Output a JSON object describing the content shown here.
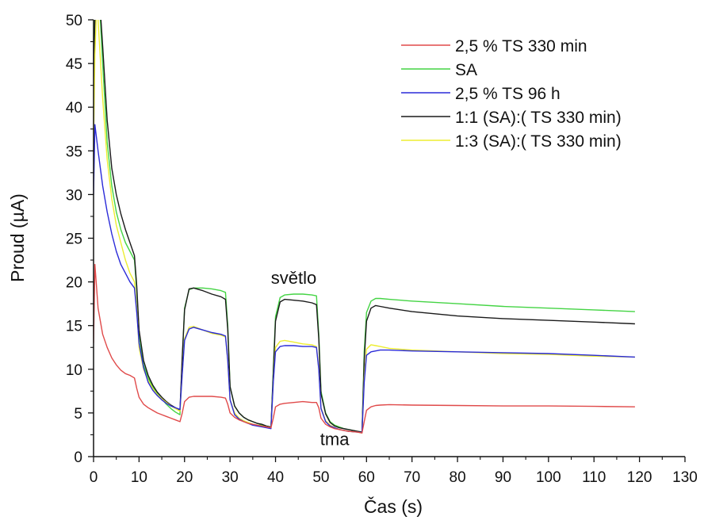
{
  "chart_data": {
    "type": "line",
    "title": "",
    "xlabel": "Čas (s)",
    "ylabel": "Proud (µA)",
    "xlim": [
      0,
      130
    ],
    "ylim": [
      0,
      50
    ],
    "xticks": [
      0,
      10,
      20,
      30,
      40,
      50,
      60,
      70,
      80,
      90,
      100,
      110,
      120,
      130
    ],
    "yticks": [
      0,
      5,
      10,
      15,
      20,
      25,
      30,
      35,
      40,
      45,
      50
    ],
    "grid": false,
    "legend_position": "top-right",
    "annotations": [
      {
        "text": "světlo",
        "x": 44,
        "y": 19.8
      },
      {
        "text": "tma",
        "x": 53,
        "y": 1.3
      }
    ],
    "series": [
      {
        "name": "2,5 % TS 330 min",
        "color": "#e04a4a",
        "x": [
          0,
          0.3,
          1,
          2,
          3,
          4,
          5,
          6,
          7,
          8,
          9,
          9.5,
          10,
          11,
          12,
          13,
          14,
          15,
          16,
          17,
          18,
          19,
          19.5,
          20,
          21,
          22,
          24,
          26,
          28,
          29,
          29.5,
          30,
          31,
          32,
          33,
          34,
          35,
          36,
          37,
          38,
          39,
          39.5,
          40,
          41,
          42,
          44,
          46,
          48,
          49,
          49.5,
          50,
          51,
          52,
          53,
          54,
          55,
          56,
          57,
          58,
          59,
          59.5,
          60,
          61,
          62,
          63,
          65,
          70,
          80,
          90,
          100,
          110,
          119
        ],
        "y": [
          13,
          22,
          17,
          14,
          12.5,
          11.3,
          10.5,
          9.9,
          9.5,
          9.3,
          9,
          7.8,
          6.8,
          6,
          5.6,
          5.3,
          5,
          4.8,
          4.6,
          4.4,
          4.2,
          4,
          5,
          6.3,
          6.8,
          6.9,
          6.9,
          6.9,
          6.8,
          6.7,
          6,
          5,
          4.5,
          4.2,
          4,
          3.8,
          3.7,
          3.6,
          3.5,
          3.4,
          3.3,
          4.4,
          5.7,
          6,
          6.1,
          6.2,
          6.3,
          6.2,
          6.2,
          5.6,
          4.4,
          3.7,
          3.4,
          3.2,
          3.1,
          3,
          2.9,
          2.85,
          2.8,
          2.7,
          4,
          5.3,
          5.7,
          5.85,
          5.9,
          5.95,
          5.9,
          5.85,
          5.8,
          5.8,
          5.75,
          5.7
        ]
      },
      {
        "name": "SA",
        "color": "#44d444",
        "x": [
          0,
          0.3,
          0.7,
          1,
          2,
          3,
          4,
          5,
          6,
          7,
          8,
          9,
          9.5,
          10,
          11,
          12,
          13,
          14,
          15,
          16,
          17,
          18,
          19,
          19.5,
          20,
          21,
          22,
          24,
          26,
          28,
          29,
          29.5,
          30,
          31,
          32,
          33,
          34,
          35,
          36,
          37,
          38,
          39,
          39.5,
          40,
          41,
          42,
          44,
          46,
          48,
          49,
          49.5,
          50,
          51,
          52,
          53,
          54,
          55,
          56,
          57,
          58,
          59,
          59.5,
          60,
          61,
          62,
          63,
          65,
          70,
          80,
          90,
          100,
          110,
          119
        ],
        "y": [
          40,
          52,
          60,
          55,
          45,
          36,
          31,
          28,
          26,
          24.5,
          23.5,
          22.5,
          19,
          14,
          10.5,
          9,
          8,
          7.2,
          6.6,
          6,
          5.5,
          5.1,
          4.8,
          11,
          17,
          19.1,
          19.3,
          19.3,
          19.2,
          19,
          18.8,
          15,
          8,
          5.8,
          5,
          4.5,
          4.2,
          4,
          3.8,
          3.6,
          3.5,
          3.3,
          10,
          16,
          18.2,
          18.5,
          18.6,
          18.6,
          18.5,
          18.4,
          14,
          7.5,
          5,
          4,
          3.6,
          3.4,
          3.2,
          3.1,
          3,
          2.9,
          2.8,
          12,
          16.5,
          17.8,
          18.1,
          18.1,
          18,
          17.8,
          17.5,
          17.2,
          17,
          16.8,
          16.6
        ]
      },
      {
        "name": "2,5 % TS 96 h",
        "color": "#2a2ad8",
        "x": [
          0,
          0.3,
          1,
          2,
          3,
          4,
          5,
          6,
          7,
          8,
          9,
          9.5,
          10,
          11,
          12,
          13,
          14,
          15,
          16,
          17,
          18,
          19,
          19.5,
          20,
          21,
          22,
          24,
          26,
          28,
          29,
          29.5,
          30,
          31,
          32,
          33,
          34,
          35,
          36,
          37,
          38,
          39,
          39.5,
          40,
          41,
          42,
          44,
          46,
          48,
          49,
          49.5,
          50,
          51,
          52,
          53,
          54,
          55,
          56,
          57,
          58,
          59,
          59.5,
          60,
          61,
          62,
          63,
          65,
          70,
          80,
          90,
          100,
          110,
          119
        ],
        "y": [
          30,
          38,
          35,
          31,
          28,
          25.5,
          23.5,
          22,
          21,
          20,
          19.3,
          16.5,
          13,
          10.2,
          8.5,
          7.6,
          7,
          6.5,
          6.1,
          5.8,
          5.6,
          5.4,
          9.5,
          13.3,
          14.6,
          14.8,
          14.5,
          14.2,
          14,
          13.8,
          11,
          6.5,
          4.8,
          4.3,
          4,
          3.8,
          3.6,
          3.5,
          3.4,
          3.3,
          3.2,
          8.5,
          12,
          12.6,
          12.7,
          12.7,
          12.6,
          12.6,
          12.5,
          10,
          5.5,
          4,
          3.5,
          3.3,
          3.1,
          3,
          2.9,
          2.85,
          2.8,
          2.75,
          8.5,
          11.6,
          12,
          12.1,
          12.2,
          12.2,
          12.1,
          12,
          11.9,
          11.8,
          11.6,
          11.4
        ]
      },
      {
        "name": "1:1 (SA):( TS 330 min)",
        "color": "#1a1a1a",
        "x": [
          0,
          0.3,
          0.7,
          1,
          2,
          3,
          4,
          5,
          6,
          7,
          8,
          9,
          9.5,
          10,
          11,
          12,
          13,
          14,
          15,
          16,
          17,
          18,
          19,
          19.5,
          20,
          21,
          22,
          24,
          26,
          28,
          29,
          29.5,
          30,
          31,
          32,
          33,
          34,
          35,
          36,
          37,
          38,
          39,
          39.5,
          40,
          41,
          42,
          44,
          46,
          48,
          49,
          49.5,
          50,
          51,
          52,
          53,
          54,
          55,
          56,
          57,
          58,
          59,
          59.5,
          60,
          61,
          62,
          63,
          65,
          70,
          80,
          90,
          100,
          110,
          119
        ],
        "y": [
          38,
          50,
          58,
          55,
          47,
          38.5,
          33,
          30,
          27.8,
          26,
          24.5,
          23,
          19.5,
          14.5,
          11,
          9.3,
          8.2,
          7.4,
          6.8,
          6.3,
          5.9,
          5.6,
          5.3,
          11.5,
          16.8,
          19.2,
          19.3,
          19,
          18.6,
          18.3,
          18,
          14.5,
          8,
          5.8,
          5,
          4.5,
          4.2,
          4,
          3.8,
          3.7,
          3.5,
          3.4,
          9.5,
          15.5,
          17.7,
          18,
          17.9,
          17.8,
          17.6,
          17.4,
          13.5,
          7.2,
          4.9,
          3.9,
          3.5,
          3.3,
          3.2,
          3.1,
          3,
          2.9,
          2.8,
          11,
          15.5,
          17,
          17.3,
          17.2,
          17,
          16.6,
          16.1,
          15.8,
          15.6,
          15.4,
          15.2
        ]
      },
      {
        "name": "1:3 (SA):( TS 330 min)",
        "color": "#eded30",
        "x": [
          0,
          0.3,
          0.7,
          1,
          2,
          3,
          4,
          5,
          6,
          7,
          8,
          9,
          9.5,
          10,
          11,
          12,
          13,
          14,
          15,
          16,
          17,
          18,
          19,
          19.5,
          20,
          21,
          22,
          24,
          26,
          28,
          29,
          29.5,
          30,
          31,
          32,
          33,
          34,
          35,
          36,
          37,
          38,
          39,
          39.5,
          40,
          41,
          42,
          44,
          46,
          48,
          49,
          49.5,
          50,
          51,
          52,
          53,
          54,
          55,
          56,
          57,
          58,
          59,
          59.5,
          60,
          61,
          62,
          63,
          65,
          70,
          80,
          90,
          100,
          110,
          119
        ],
        "y": [
          36,
          46,
          52,
          50,
          41,
          34,
          29.5,
          26.5,
          24.5,
          22.5,
          21,
          20,
          17,
          12.5,
          10,
          8.7,
          7.8,
          7.1,
          6.6,
          6.2,
          5.8,
          5.5,
          5.2,
          9.5,
          13.5,
          14.8,
          14.9,
          14.5,
          14.1,
          13.9,
          13.7,
          11,
          6.5,
          5,
          4.4,
          4.1,
          3.9,
          3.7,
          3.6,
          3.5,
          3.4,
          3.3,
          8.5,
          12.5,
          13.2,
          13.3,
          13.1,
          12.9,
          12.8,
          12.6,
          10,
          5.6,
          4.1,
          3.6,
          3.3,
          3.1,
          3,
          2.9,
          2.85,
          2.8,
          2.7,
          9,
          12.3,
          12.8,
          12.7,
          12.6,
          12.4,
          12.2,
          12,
          11.8,
          11.7,
          11.5,
          11.4
        ]
      }
    ]
  }
}
